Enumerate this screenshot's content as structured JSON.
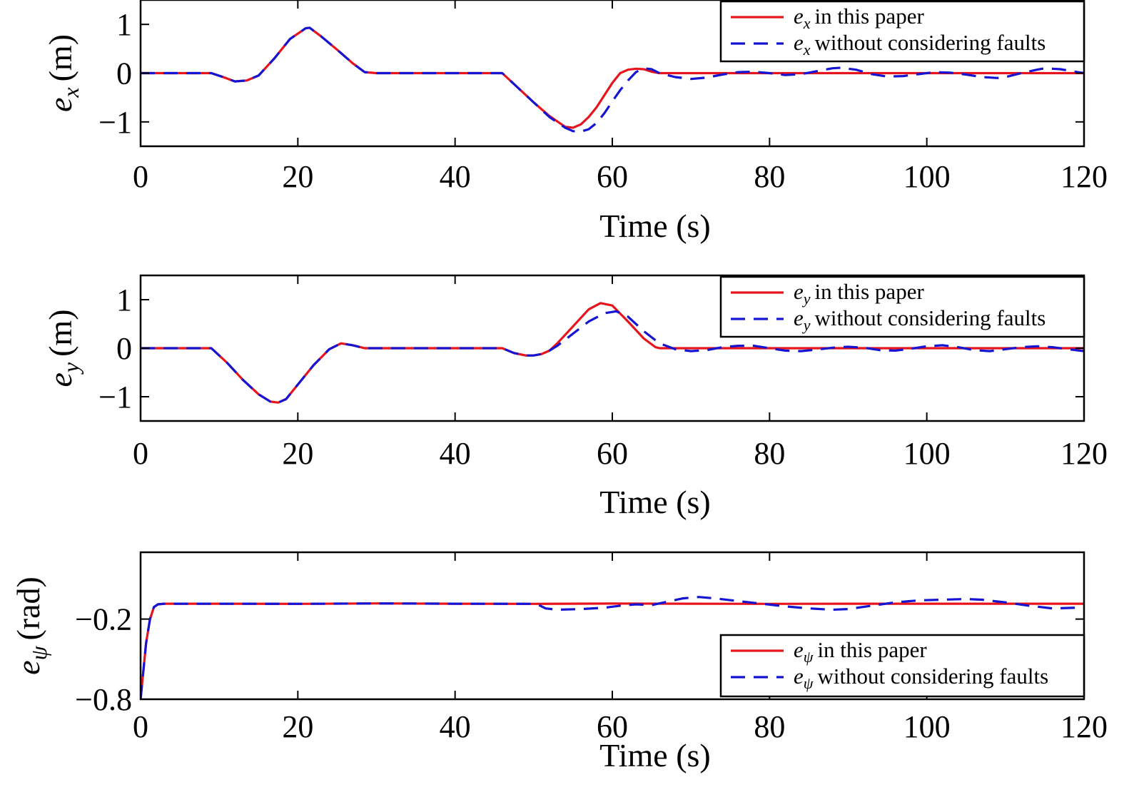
{
  "chart_data": [
    {
      "type": "line",
      "xlabel": "Time (s)",
      "ylabel": "e_x (m)",
      "ylabel_main": "e",
      "ylabel_sub": "x",
      "ylabel_unit": "(m)",
      "xlim": [
        0,
        120
      ],
      "ylim": [
        -1.5,
        1.5
      ],
      "xticks": [
        "0",
        "20",
        "40",
        "60",
        "80",
        "100",
        "120"
      ],
      "xtick_values": [
        0,
        20,
        40,
        60,
        80,
        100,
        120
      ],
      "yticks": [
        "−1",
        "0",
        "1"
      ],
      "ytick_values": [
        -1,
        0,
        1
      ],
      "legend_position": "top-right",
      "series": [
        {
          "name": "e_x in this paper",
          "legend_main": "e",
          "legend_sub": "x",
          "legend_text": "in this paper",
          "color": "#e8141c",
          "style": "solid",
          "x": [
            0,
            9,
            10.5,
            12,
            13.5,
            15,
            17,
            19,
            21,
            21.5,
            23,
            25,
            27,
            28.5,
            30,
            46,
            48,
            50,
            52,
            54,
            55,
            56,
            57,
            58,
            59,
            60,
            61,
            62,
            63,
            64,
            65,
            66,
            120
          ],
          "y": [
            0,
            0,
            -0.08,
            -0.17,
            -0.15,
            -0.05,
            0.3,
            0.7,
            0.92,
            0.93,
            0.75,
            0.48,
            0.2,
            0.02,
            0,
            0,
            -0.3,
            -0.6,
            -0.88,
            -1.1,
            -1.12,
            -1.05,
            -0.9,
            -0.7,
            -0.45,
            -0.2,
            0,
            0.07,
            0.09,
            0.08,
            0.03,
            0,
            0
          ]
        },
        {
          "name": "e_x without considering faults",
          "legend_main": "e",
          "legend_sub": "x",
          "legend_text": "without considering faults",
          "color": "#1414d2",
          "style": "dashed",
          "x": [
            0,
            9,
            10.5,
            12,
            13.5,
            15,
            17,
            19,
            21,
            21.5,
            23,
            25,
            27,
            28.5,
            30,
            46,
            48,
            50,
            52,
            54,
            55,
            56,
            57,
            58,
            59,
            60,
            61,
            62,
            63,
            64,
            65,
            66,
            68,
            70,
            72,
            74,
            76,
            78,
            80,
            82,
            84,
            86,
            88,
            89,
            91,
            93,
            95,
            97,
            99,
            101,
            103,
            105,
            107,
            109,
            110,
            112,
            114,
            115,
            117,
            120
          ],
          "y": [
            0,
            0,
            -0.08,
            -0.17,
            -0.15,
            -0.05,
            0.3,
            0.7,
            0.92,
            0.93,
            0.75,
            0.48,
            0.2,
            0.02,
            0,
            0,
            -0.3,
            -0.6,
            -0.9,
            -1.12,
            -1.19,
            -1.2,
            -1.15,
            -1.02,
            -0.82,
            -0.58,
            -0.35,
            -0.15,
            0.02,
            0.1,
            0.08,
            0,
            -0.08,
            -0.12,
            -0.09,
            -0.03,
            0.02,
            0.03,
            0,
            -0.04,
            -0.02,
            0.04,
            0.1,
            0.11,
            0.07,
            -0.02,
            -0.07,
            -0.06,
            -0.02,
            0.02,
            0.01,
            -0.03,
            -0.08,
            -0.1,
            -0.08,
            0,
            0.07,
            0.1,
            0.08,
            0
          ]
        }
      ]
    },
    {
      "type": "line",
      "xlabel": "Time (s)",
      "ylabel": "e_y (m)",
      "ylabel_main": "e",
      "ylabel_sub": "y",
      "ylabel_unit": "(m)",
      "xlim": [
        0,
        120
      ],
      "ylim": [
        -1.5,
        1.5
      ],
      "xticks": [
        "0",
        "20",
        "40",
        "60",
        "80",
        "100",
        "120"
      ],
      "xtick_values": [
        0,
        20,
        40,
        60,
        80,
        100,
        120
      ],
      "yticks": [
        "−1",
        "0",
        "1"
      ],
      "ytick_values": [
        -1,
        0,
        1
      ],
      "legend_position": "top-right",
      "series": [
        {
          "name": "e_y in this paper",
          "legend_main": "e",
          "legend_sub": "y",
          "legend_text": "in this paper",
          "color": "#e8141c",
          "style": "solid",
          "x": [
            0,
            9,
            11,
            13,
            15,
            16.5,
            17.5,
            18.5,
            20,
            22,
            24,
            25.5,
            27,
            28.5,
            30,
            46,
            47.5,
            49,
            50,
            51,
            52,
            53,
            55,
            57,
            58.5,
            60,
            62,
            64,
            65.5,
            66,
            120
          ],
          "y": [
            0,
            0,
            -0.3,
            -0.65,
            -0.95,
            -1.1,
            -1.12,
            -1.05,
            -0.75,
            -0.35,
            -0.02,
            0.1,
            0.06,
            0,
            0,
            0,
            -0.1,
            -0.15,
            -0.15,
            -0.12,
            -0.05,
            0.1,
            0.45,
            0.8,
            0.93,
            0.88,
            0.55,
            0.2,
            0.02,
            0,
            0
          ]
        },
        {
          "name": "e_y without considering faults",
          "legend_main": "e",
          "legend_sub": "y",
          "legend_text": "without considering faults",
          "color": "#1414d2",
          "style": "dashed",
          "x": [
            0,
            9,
            11,
            13,
            15,
            16.5,
            17.5,
            18.5,
            20,
            22,
            24,
            25.5,
            27,
            28.5,
            30,
            46,
            47.5,
            49,
            50,
            51,
            52,
            53,
            55,
            57,
            59,
            60.5,
            62,
            64,
            66,
            68,
            70,
            72,
            74,
            76,
            78,
            80,
            82,
            84,
            86,
            88,
            90,
            92,
            94,
            96,
            98,
            100,
            102,
            104,
            106,
            108,
            110,
            112,
            114,
            116,
            118,
            120
          ],
          "y": [
            0,
            0,
            -0.3,
            -0.65,
            -0.95,
            -1.1,
            -1.12,
            -1.05,
            -0.75,
            -0.35,
            -0.02,
            0.1,
            0.06,
            0,
            0,
            0,
            -0.1,
            -0.15,
            -0.15,
            -0.12,
            -0.05,
            0.05,
            0.3,
            0.55,
            0.72,
            0.76,
            0.65,
            0.35,
            0.1,
            -0.02,
            -0.06,
            -0.04,
            0.02,
            0.05,
            0.05,
            0,
            -0.05,
            -0.06,
            -0.03,
            0.01,
            0.03,
            0.01,
            -0.04,
            -0.05,
            -0.01,
            0.04,
            0.06,
            0.02,
            -0.04,
            -0.06,
            -0.02,
            0.02,
            0.04,
            0.02,
            -0.02,
            -0.06
          ]
        }
      ]
    },
    {
      "type": "line",
      "xlabel": "Time (s)",
      "ylabel": "e_ψ (rad)",
      "ylabel_main": "e",
      "ylabel_sub": "ψ",
      "ylabel_unit": "(rad)",
      "xlim": [
        0,
        120
      ],
      "ylim": [
        -0.8,
        0.3
      ],
      "xticks": [
        "0",
        "20",
        "40",
        "60",
        "80",
        "100",
        "120"
      ],
      "xtick_values": [
        0,
        20,
        40,
        60,
        80,
        100,
        120
      ],
      "yticks": [
        "−0.8",
        "−0.2"
      ],
      "ytick_values": [
        -0.8,
        -0.2
      ],
      "legend_position": "bottom-right",
      "series": [
        {
          "name": "e_ψ in this paper",
          "legend_main": "e",
          "legend_sub": "ψ",
          "legend_text": "in this paper",
          "color": "#e8141c",
          "style": "solid",
          "x": [
            0,
            0.3,
            0.7,
            1.2,
            1.7,
            2.2,
            3,
            10,
            20,
            30,
            40,
            50,
            60,
            70,
            80,
            90,
            100,
            110,
            120
          ],
          "y": [
            -0.8,
            -0.62,
            -0.38,
            -0.2,
            -0.11,
            -0.09,
            -0.085,
            -0.085,
            -0.086,
            -0.083,
            -0.085,
            -0.086,
            -0.084,
            -0.085,
            -0.086,
            -0.085,
            -0.085,
            -0.085,
            -0.085
          ]
        },
        {
          "name": "e_ψ without considering faults",
          "legend_main": "e",
          "legend_sub": "ψ",
          "legend_text": "without considering faults",
          "color": "#1414d2",
          "style": "dashed",
          "x": [
            0,
            0.3,
            0.7,
            1.2,
            1.7,
            2.2,
            3,
            10,
            20,
            30,
            40,
            50,
            50.5,
            51.5,
            53,
            56,
            59,
            61,
            63,
            65,
            67,
            69,
            71,
            73,
            76,
            79,
            82,
            85,
            88,
            90,
            93,
            96,
            99,
            102,
            105,
            107,
            110,
            113,
            116,
            119,
            120
          ],
          "y": [
            -0.8,
            -0.62,
            -0.38,
            -0.2,
            -0.11,
            -0.09,
            -0.085,
            -0.085,
            -0.086,
            -0.083,
            -0.085,
            -0.086,
            -0.09,
            -0.12,
            -0.13,
            -0.125,
            -0.115,
            -0.1,
            -0.09,
            -0.095,
            -0.07,
            -0.045,
            -0.035,
            -0.045,
            -0.065,
            -0.085,
            -0.105,
            -0.12,
            -0.13,
            -0.125,
            -0.1,
            -0.075,
            -0.06,
            -0.055,
            -0.05,
            -0.055,
            -0.075,
            -0.1,
            -0.12,
            -0.115,
            -0.11
          ]
        }
      ]
    }
  ]
}
